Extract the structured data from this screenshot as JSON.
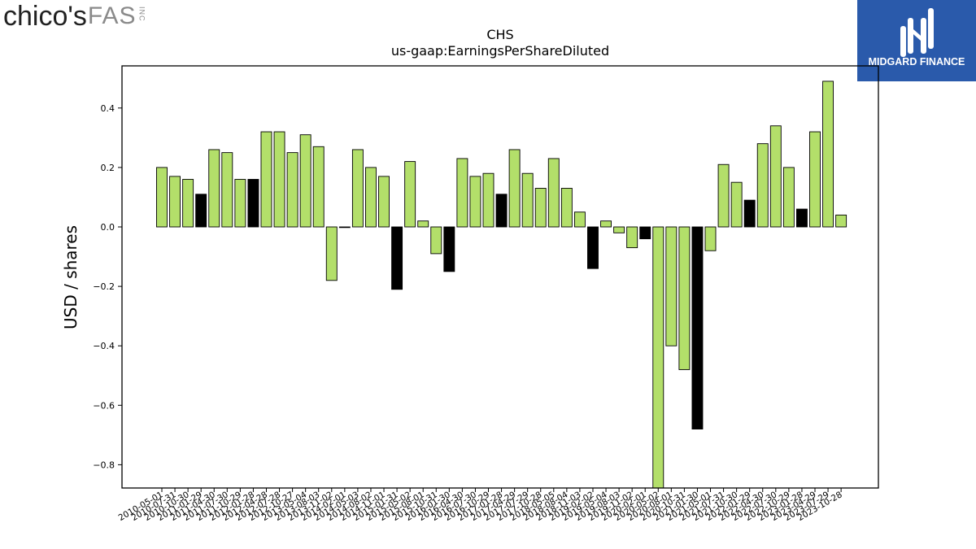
{
  "logos": {
    "left": {
      "main": "chico's",
      "suffix": "FAS",
      "small": "INC"
    },
    "right": {
      "name": "MIDGARD FINANCE"
    }
  },
  "colors": {
    "positive": "#b3df6a",
    "highlight": "#000000",
    "edge": "#000000"
  },
  "chart_data": {
    "type": "bar",
    "title": "CHS",
    "subtitle": "us-gaap:EarningsPerShareDiluted",
    "xlabel": "",
    "ylabel": "USD / shares",
    "ylim": [
      -0.88,
      0.54
    ],
    "yticks": [
      -0.8,
      -0.6,
      -0.4,
      -0.2,
      0.0,
      0.2,
      0.4
    ],
    "grid": false,
    "categories": [
      "2010-05-01",
      "2010-07-31",
      "2010-10-30",
      "2011-01-29",
      "2011-04-30",
      "2011-07-30",
      "2011-10-29",
      "2012-01-28",
      "2012-04-28",
      "2012-07-28",
      "2012-10-27",
      "2013-05-04",
      "2013-08-03",
      "2013-11-02",
      "2014-02-01",
      "2014-05-03",
      "2014-08-02",
      "2014-11-01",
      "2015-01-31",
      "2015-05-02",
      "2015-08-01",
      "2015-10-31",
      "2016-01-30",
      "2016-04-30",
      "2016-07-30",
      "2016-10-29",
      "2017-01-28",
      "2017-04-29",
      "2017-07-29",
      "2017-10-28",
      "2018-05-05",
      "2018-08-04",
      "2018-11-03",
      "2019-02-02",
      "2019-05-04",
      "2019-08-03",
      "2019-11-02",
      "2020-02-01",
      "2020-05-02",
      "2020-08-01",
      "2020-10-31",
      "2021-01-30",
      "2021-05-01",
      "2021-07-31",
      "2021-10-30",
      "2022-01-29",
      "2022-04-30",
      "2022-07-30",
      "2022-10-29",
      "2023-01-28",
      "2023-04-29",
      "2023-07-29",
      "2023-10-28"
    ],
    "values": [
      0.2,
      0.17,
      0.16,
      0.11,
      0.26,
      0.25,
      0.16,
      0.16,
      0.32,
      0.32,
      0.25,
      0.31,
      0.27,
      -0.18,
      0.0,
      0.26,
      0.2,
      0.17,
      -0.21,
      0.22,
      0.02,
      -0.09,
      -0.15,
      0.23,
      0.17,
      0.18,
      0.11,
      0.26,
      0.18,
      0.13,
      0.23,
      0.13,
      0.05,
      -0.14,
      0.02,
      -0.02,
      -0.07,
      -0.04,
      -0.88,
      -0.4,
      -0.48,
      -0.68,
      -0.08,
      0.21,
      0.15,
      0.09,
      0.28,
      0.34,
      0.2,
      0.06,
      0.32,
      0.49,
      0.04
    ],
    "highlighted": [
      false,
      false,
      false,
      true,
      false,
      false,
      false,
      true,
      false,
      false,
      false,
      false,
      false,
      false,
      false,
      false,
      false,
      false,
      true,
      false,
      false,
      false,
      true,
      false,
      false,
      false,
      true,
      false,
      false,
      false,
      false,
      false,
      false,
      true,
      false,
      false,
      false,
      true,
      false,
      false,
      false,
      true,
      false,
      false,
      false,
      true,
      false,
      false,
      false,
      true,
      false,
      false,
      false
    ]
  }
}
